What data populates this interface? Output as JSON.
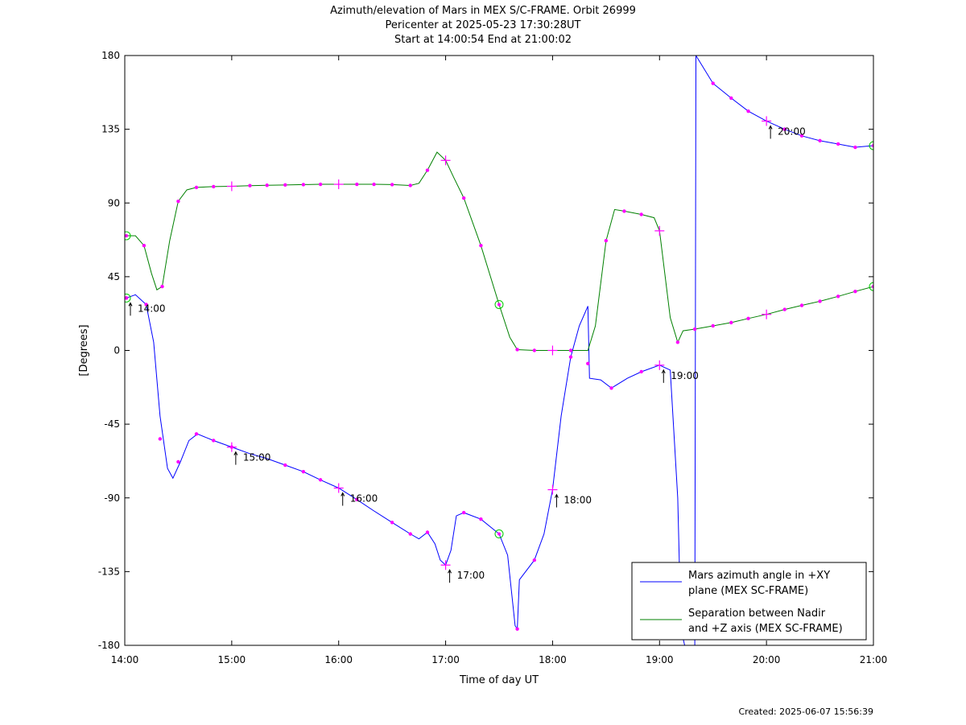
{
  "chart_data": {
    "type": "line",
    "title": [
      "Azimuth/elevation of Mars in MEX S/C-FRAME.  Orbit 26999",
      "Pericenter at 2025-05-23 17:30:28UT",
      "Start at 14:00:54 End at 21:00:02"
    ],
    "xlabel": "Time of day UT",
    "ylabel": "[Degrees]",
    "x_unit": "hours of day UT",
    "xlim": [
      14.0,
      21.0
    ],
    "ylim": [
      -180,
      180
    ],
    "x_ticks": [
      {
        "value": 14,
        "label": "14:00"
      },
      {
        "value": 15,
        "label": "15:00"
      },
      {
        "value": 16,
        "label": "16:00"
      },
      {
        "value": 17,
        "label": "17:00"
      },
      {
        "value": 18,
        "label": "18:00"
      },
      {
        "value": 19,
        "label": "19:00"
      },
      {
        "value": 20,
        "label": "20:00"
      },
      {
        "value": 21,
        "label": "21:00"
      }
    ],
    "y_ticks": [
      {
        "value": 180,
        "label": "180"
      },
      {
        "value": 135,
        "label": "135"
      },
      {
        "value": 90,
        "label": "90"
      },
      {
        "value": 45,
        "label": "45"
      },
      {
        "value": 0,
        "label": "0"
      },
      {
        "value": -45,
        "label": "-45"
      },
      {
        "value": -90,
        "label": "-90"
      },
      {
        "value": -135,
        "label": "-135"
      },
      {
        "value": -180,
        "label": "-180"
      }
    ],
    "grid": false,
    "legend_position": "bottom-right",
    "series": [
      {
        "name": "Mars azimuth angle in +XY plane (MEX SC-FRAME)",
        "legend_lines": [
          "Mars azimuth angle in +XY",
          "plane (MEX SC-FRAME)"
        ],
        "color": "#0000ff",
        "points": [
          [
            14.015,
            32
          ],
          [
            14.1,
            34
          ],
          [
            14.2,
            28
          ],
          [
            14.27,
            5
          ],
          [
            14.33,
            -40
          ],
          [
            14.4,
            -72
          ],
          [
            14.45,
            -78
          ],
          [
            14.52,
            -68
          ],
          [
            14.6,
            -55
          ],
          [
            14.68,
            -51
          ],
          [
            14.83,
            -55
          ],
          [
            15.0,
            -59
          ],
          [
            15.17,
            -63
          ],
          [
            15.33,
            -66
          ],
          [
            15.5,
            -70
          ],
          [
            15.67,
            -74
          ],
          [
            15.83,
            -79
          ],
          [
            16.0,
            -84
          ],
          [
            16.17,
            -91
          ],
          [
            16.33,
            -98
          ],
          [
            16.5,
            -105
          ],
          [
            16.67,
            -112
          ],
          [
            16.75,
            -115
          ],
          [
            16.83,
            -111
          ],
          [
            16.9,
            -118
          ],
          [
            16.95,
            -128
          ],
          [
            17.0,
            -131
          ],
          [
            17.05,
            -122
          ],
          [
            17.1,
            -101
          ],
          [
            17.17,
            -99
          ],
          [
            17.33,
            -103
          ],
          [
            17.5,
            -112
          ],
          [
            17.58,
            -125
          ],
          [
            17.65,
            -168
          ],
          [
            17.67,
            -170
          ],
          [
            17.69,
            -140
          ],
          [
            17.83,
            -128
          ],
          [
            17.92,
            -112
          ],
          [
            18.0,
            -85
          ],
          [
            18.08,
            -40
          ],
          [
            18.17,
            -4
          ],
          [
            18.25,
            15
          ],
          [
            18.33,
            27
          ],
          [
            18.345,
            -17
          ],
          [
            18.45,
            -18
          ],
          [
            18.55,
            -23
          ],
          [
            18.7,
            -17
          ],
          [
            18.83,
            -13
          ],
          [
            19.0,
            -9
          ],
          [
            19.1,
            -12
          ],
          [
            19.17,
            -90
          ],
          [
            19.2,
            -170
          ],
          [
            19.235,
            -180
          ]
        ],
        "points_after_wrap": [
          [
            19.33,
            -180
          ],
          [
            19.34,
            180
          ],
          [
            19.5,
            163
          ],
          [
            19.67,
            154
          ],
          [
            19.83,
            146
          ],
          [
            20.0,
            140
          ],
          [
            20.17,
            135
          ],
          [
            20.33,
            131
          ],
          [
            20.5,
            128
          ],
          [
            20.67,
            126
          ],
          [
            20.83,
            124
          ],
          [
            21.0,
            125
          ]
        ]
      },
      {
        "name": "Separation between Nadir and +Z axis (MEX SC-FRAME)",
        "legend_lines": [
          "Separation between Nadir",
          "and +Z axis (MEX SC-FRAME)"
        ],
        "color": "#008000",
        "points": [
          [
            14.015,
            70
          ],
          [
            14.1,
            70
          ],
          [
            14.18,
            64
          ],
          [
            14.25,
            47
          ],
          [
            14.3,
            37
          ],
          [
            14.35,
            39
          ],
          [
            14.42,
            67
          ],
          [
            14.5,
            91
          ],
          [
            14.58,
            98
          ],
          [
            14.67,
            99.5
          ],
          [
            14.83,
            100
          ],
          [
            15.0,
            100.2
          ],
          [
            15.17,
            100.6
          ],
          [
            15.33,
            100.8
          ],
          [
            15.5,
            101
          ],
          [
            15.67,
            101.2
          ],
          [
            15.83,
            101.4
          ],
          [
            16.0,
            101.4
          ],
          [
            16.17,
            101.4
          ],
          [
            16.33,
            101.4
          ],
          [
            16.5,
            101.2
          ],
          [
            16.67,
            100.7
          ],
          [
            16.75,
            102
          ],
          [
            16.83,
            110
          ],
          [
            16.92,
            121
          ],
          [
            17.0,
            116
          ],
          [
            17.08,
            105
          ],
          [
            17.17,
            93
          ],
          [
            17.33,
            64
          ],
          [
            17.5,
            28
          ],
          [
            17.6,
            8
          ],
          [
            17.67,
            0.5
          ],
          [
            17.83,
            0
          ],
          [
            18.0,
            0
          ],
          [
            18.17,
            0
          ],
          [
            18.33,
            0
          ],
          [
            18.4,
            15
          ],
          [
            18.5,
            67
          ],
          [
            18.58,
            86
          ],
          [
            18.67,
            85
          ],
          [
            18.83,
            83
          ],
          [
            18.95,
            81
          ],
          [
            19.0,
            73
          ],
          [
            19.1,
            20
          ],
          [
            19.17,
            5
          ],
          [
            19.22,
            12
          ],
          [
            19.33,
            13
          ],
          [
            19.5,
            15
          ],
          [
            19.67,
            17
          ],
          [
            19.83,
            19.5
          ],
          [
            20.0,
            22
          ],
          [
            20.17,
            25
          ],
          [
            20.33,
            27.5
          ],
          [
            20.5,
            30
          ],
          [
            20.67,
            33
          ],
          [
            20.83,
            36
          ],
          [
            21.0,
            39
          ]
        ]
      }
    ],
    "markers": {
      "dots": [
        [
          14.015,
          32
        ],
        [
          14.2,
          28
        ],
        [
          14.33,
          -54
        ],
        [
          14.5,
          -68
        ],
        [
          14.67,
          -51
        ],
        [
          14.83,
          -55
        ],
        [
          15.0,
          -59
        ],
        [
          15.5,
          -70
        ],
        [
          15.67,
          -74
        ],
        [
          15.83,
          -79
        ],
        [
          16.17,
          -91
        ],
        [
          16.5,
          -105
        ],
        [
          16.67,
          -112
        ],
        [
          16.83,
          -111
        ],
        [
          17.17,
          -99
        ],
        [
          17.33,
          -103
        ],
        [
          17.67,
          -170
        ],
        [
          17.83,
          -128
        ],
        [
          18.17,
          -4
        ],
        [
          18.33,
          -8
        ],
        [
          18.55,
          -23
        ],
        [
          18.83,
          -13
        ],
        [
          19.5,
          163
        ],
        [
          19.67,
          154
        ],
        [
          19.83,
          146
        ],
        [
          20.17,
          135
        ],
        [
          20.33,
          131
        ],
        [
          20.5,
          128
        ],
        [
          20.67,
          126
        ],
        [
          20.83,
          124
        ],
        [
          14.18,
          64
        ],
        [
          14.35,
          39
        ],
        [
          14.5,
          91
        ],
        [
          14.67,
          99.5
        ],
        [
          14.83,
          100
        ],
        [
          15.17,
          100.6
        ],
        [
          15.33,
          100.8
        ],
        [
          15.5,
          101
        ],
        [
          15.67,
          101.2
        ],
        [
          15.83,
          101.4
        ],
        [
          16.17,
          101.4
        ],
        [
          16.33,
          101.4
        ],
        [
          16.5,
          101.2
        ],
        [
          16.67,
          100.7
        ],
        [
          16.83,
          110
        ],
        [
          17.17,
          93
        ],
        [
          17.33,
          64
        ],
        [
          17.67,
          0.5
        ],
        [
          17.83,
          0
        ],
        [
          18.17,
          0
        ],
        [
          18.5,
          67
        ],
        [
          18.67,
          85
        ],
        [
          18.83,
          83
        ],
        [
          19.17,
          5
        ],
        [
          19.33,
          13
        ],
        [
          19.5,
          15
        ],
        [
          19.67,
          17
        ],
        [
          19.83,
          19.5
        ],
        [
          20.17,
          25
        ],
        [
          20.33,
          27.5
        ],
        [
          20.5,
          30
        ],
        [
          20.67,
          33
        ],
        [
          20.83,
          36
        ]
      ],
      "hour_crosses": [
        [
          15.0,
          -59
        ],
        [
          16.0,
          -84
        ],
        [
          17.0,
          -131
        ],
        [
          18.0,
          -85
        ],
        [
          19.0,
          -9
        ],
        [
          20.0,
          140
        ],
        [
          15.0,
          100.2
        ],
        [
          16.0,
          101.4
        ],
        [
          17.0,
          116
        ],
        [
          18.0,
          0
        ],
        [
          19.0,
          73
        ],
        [
          20.0,
          22
        ]
      ],
      "circles": [
        [
          14.015,
          32
        ],
        [
          14.015,
          70
        ],
        [
          17.5,
          -112
        ],
        [
          17.5,
          28
        ],
        [
          21.0,
          125
        ],
        [
          21.0,
          39
        ]
      ]
    },
    "annotations": [
      {
        "text": "14:00",
        "x": 14.015,
        "y": 32
      },
      {
        "text": "15:00",
        "x": 15.0,
        "y": -59
      },
      {
        "text": "16:00",
        "x": 16.0,
        "y": -84
      },
      {
        "text": "17:00",
        "x": 17.0,
        "y": -131
      },
      {
        "text": "18:00",
        "x": 18.0,
        "y": -85
      },
      {
        "text": "19:00",
        "x": 19.0,
        "y": -9
      },
      {
        "text": "20:00",
        "x": 20.0,
        "y": 140
      }
    ],
    "marker_color": "#ff00ff",
    "circle_color": "#00cc00"
  },
  "footer": {
    "created": "Created: 2025-06-07 15:56:39"
  }
}
